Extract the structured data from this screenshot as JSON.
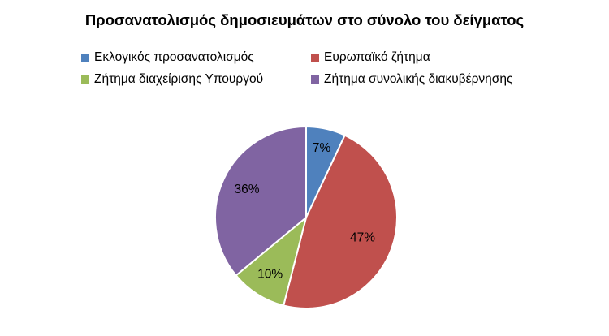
{
  "chart_data": {
    "type": "pie",
    "title": "Προσανατολισμός δημοσιευμάτων  στο σύνολο του δείγματος",
    "categories": [
      "Εκλογικός προσανατολισμός",
      "Ευρωπαϊκό ζήτημα",
      "Ζήτημα διαχείρισης Υπουργού",
      "Ζήτημα συνολικής διακυβέρνησης"
    ],
    "values": [
      7,
      47,
      10,
      36
    ],
    "data_labels": [
      "7%",
      "47%",
      "10%",
      "36%"
    ],
    "colors": [
      "#4F81BD",
      "#C0504D",
      "#9BBB59",
      "#8064A2"
    ],
    "legend_position": "top",
    "start_angle": "12 o'clock",
    "direction": "clockwise"
  }
}
